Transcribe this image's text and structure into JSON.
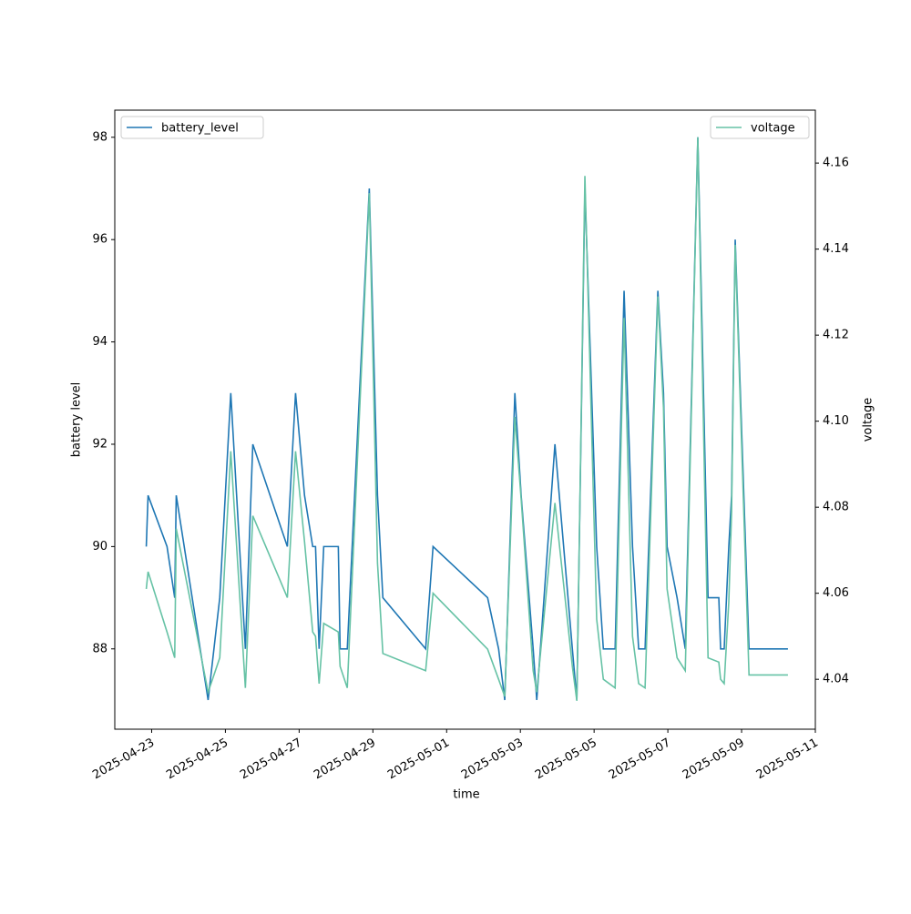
{
  "chart_data": {
    "type": "line",
    "xlabel": "time",
    "ylabel": "battery level",
    "y2label": "voltage",
    "x": [
      "2025-04-22 20:30",
      "2025-04-22 21:40",
      "2025-04-23 10:00",
      "2025-04-23 15:00",
      "2025-04-23 16:00",
      "2025-04-24 12:45",
      "2025-04-24 20:20",
      "2025-04-25 03:30",
      "2025-04-25 13:00",
      "2025-04-25 17:50",
      "2025-04-26 16:20",
      "2025-04-26 21:40",
      "2025-04-27 03:30",
      "2025-04-27 08:50",
      "2025-04-27 10:40",
      "2025-04-27 13:00",
      "2025-04-27 16:00",
      "2025-04-28 01:30",
      "2025-04-28 02:40",
      "2025-04-28 07:20",
      "2025-04-28 21:40",
      "2025-04-29 03:00",
      "2025-04-29 06:30",
      "2025-04-30 10:20",
      "2025-04-30 15:10",
      "2025-05-02 02:40",
      "2025-05-02 09:50",
      "2025-05-02 13:50",
      "2025-05-02 20:25",
      "2025-05-03 00:30",
      "2025-05-03 08:20",
      "2025-05-03 10:40",
      "2025-05-03 22:30",
      "2025-05-04 09:50",
      "2025-05-04 12:45",
      "2025-05-04 18:00",
      "2025-05-05 01:40",
      "2025-05-05 06:00",
      "2025-05-05 13:40",
      "2025-05-05 19:30",
      "2025-05-06 01:00",
      "2025-05-06 05:00",
      "2025-05-06 09:10",
      "2025-05-06 17:30",
      "2025-05-06 21:10",
      "2025-05-06 23:30",
      "2025-05-07 06:00",
      "2025-05-07 11:20",
      "2025-05-07 19:30",
      "2025-05-08 02:10",
      "2025-05-08 09:10",
      "2025-05-08 10:20",
      "2025-05-08 12:40",
      "2025-05-08 15:40",
      "2025-05-08 17:30",
      "2025-05-08 19:50",
      "2025-05-09 04:50",
      "2025-05-10 06:10"
    ],
    "series": [
      {
        "name": "battery_level",
        "color": "#1f77b4",
        "axis": "y",
        "legend": "upper left",
        "values": [
          90,
          91,
          90,
          89,
          91,
          87,
          89,
          93,
          88,
          92,
          90,
          93,
          91,
          90,
          90,
          88,
          90,
          90,
          88,
          88,
          97,
          91,
          89,
          88,
          90,
          89,
          88,
          87,
          93,
          91,
          88,
          87,
          92,
          88,
          87,
          97,
          90,
          88,
          88,
          95,
          90,
          88,
          88,
          95,
          93,
          90,
          89,
          88,
          98,
          89,
          89,
          88,
          88,
          90,
          91,
          96,
          88,
          88
        ]
      },
      {
        "name": "voltage",
        "color": "#66c2a5",
        "axis": "y2",
        "legend": "upper right",
        "values": [
          4.061,
          4.065,
          4.051,
          4.045,
          4.075,
          4.037,
          4.045,
          4.093,
          4.038,
          4.078,
          4.059,
          4.093,
          4.072,
          4.051,
          4.05,
          4.039,
          4.053,
          4.051,
          4.043,
          4.038,
          4.153,
          4.067,
          4.046,
          4.042,
          4.06,
          4.047,
          4.04,
          4.036,
          4.101,
          4.082,
          4.042,
          4.037,
          4.081,
          4.043,
          4.035,
          4.157,
          4.054,
          4.04,
          4.038,
          4.124,
          4.05,
          4.039,
          4.038,
          4.129,
          4.103,
          4.061,
          4.045,
          4.042,
          4.166,
          4.045,
          4.044,
          4.04,
          4.039,
          4.058,
          4.079,
          4.141,
          4.041,
          4.041
        ]
      }
    ],
    "xlim": [
      "2025-04-22 00:00",
      "2025-05-11 00:00"
    ],
    "xticks": [
      "2025-04-23",
      "2025-04-25",
      "2025-04-27",
      "2025-04-29",
      "2025-05-01",
      "2025-05-03",
      "2025-05-05",
      "2025-05-07",
      "2025-05-09",
      "2025-05-11"
    ],
    "ylim": [
      86.43,
      98.53
    ],
    "yticks": [
      88,
      90,
      92,
      94,
      96,
      98
    ],
    "y2lim": [
      4.0284,
      4.1723
    ],
    "y2ticks": [
      {
        "value": 4.04,
        "label": "4.04"
      },
      {
        "value": 4.06,
        "label": "4.06"
      },
      {
        "value": 4.08,
        "label": "4.08"
      },
      {
        "value": 4.1,
        "label": "4.10"
      },
      {
        "value": 4.12,
        "label": "4.12"
      },
      {
        "value": 4.14,
        "label": "4.14"
      },
      {
        "value": 4.16,
        "label": "4.16"
      }
    ],
    "grid": false
  }
}
